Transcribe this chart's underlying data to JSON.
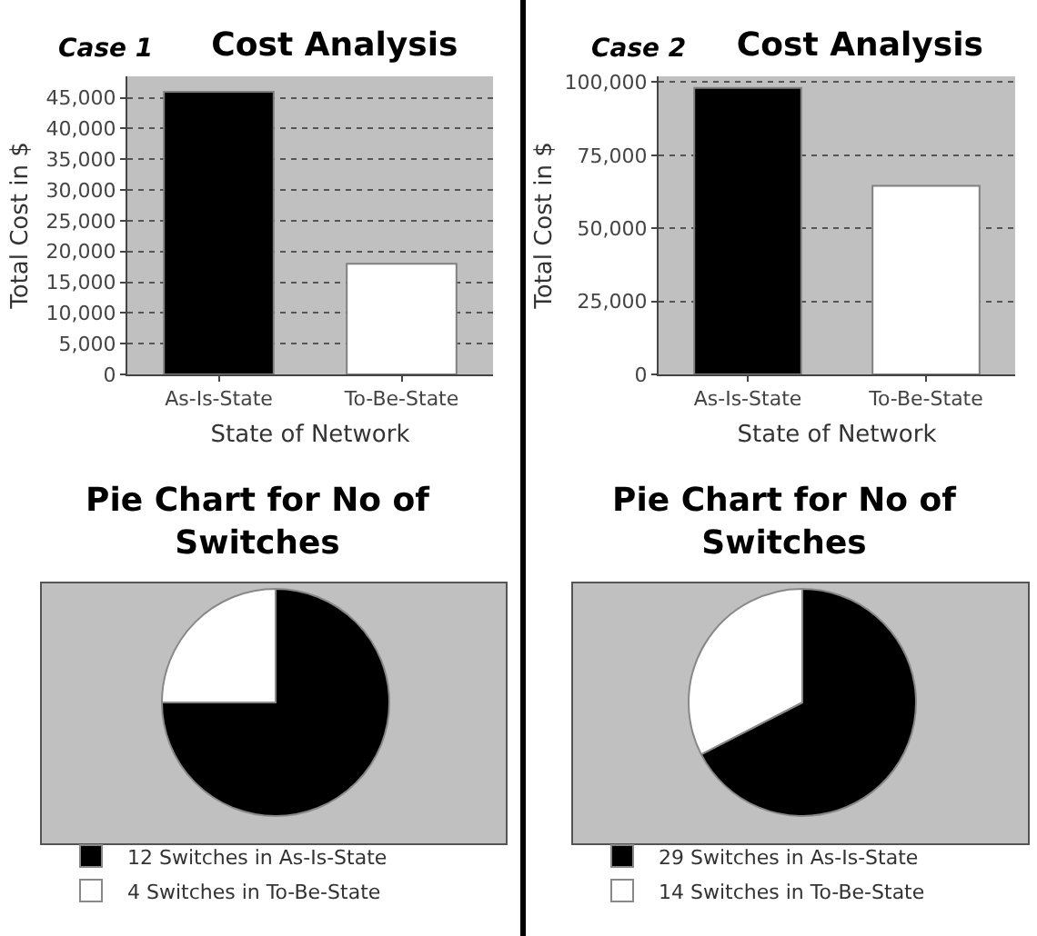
{
  "chart_data": [
    {
      "type": "bar",
      "title": "Cost Analysis",
      "annotations": [
        "Case 1"
      ],
      "xlabel": "State of Network",
      "ylabel": "Total Cost in $",
      "categories": [
        "As-Is-State",
        "To-Be-State"
      ],
      "values": [
        46000,
        18000
      ],
      "colors": [
        "#000000",
        "#ffffff"
      ],
      "ylim": [
        0,
        48500
      ],
      "yticks": [
        0,
        {
          "value": 5000,
          "label": "5,000"
        },
        {
          "value": 10000,
          "label": "10,000"
        },
        {
          "value": 15000,
          "label": "15,000"
        },
        {
          "value": 20000,
          "label": "20,000"
        },
        {
          "value": 25000,
          "label": "25,000"
        },
        {
          "value": 30000,
          "label": "30,000"
        },
        {
          "value": 35000,
          "label": "35,000"
        },
        {
          "value": 40000,
          "label": "40,000"
        },
        {
          "value": 45000,
          "label": "45,000"
        }
      ],
      "grid": "y"
    },
    {
      "type": "bar",
      "title": "Cost Analysis",
      "annotations": [
        "Case 2"
      ],
      "xlabel": "State of Network",
      "ylabel": "Total Cost in $",
      "categories": [
        "As-Is-State",
        "To-Be-State"
      ],
      "values": [
        98000,
        64500
      ],
      "colors": [
        "#000000",
        "#ffffff"
      ],
      "ylim": [
        0,
        102000
      ],
      "yticks": [
        0,
        {
          "value": 25000,
          "label": "25,000"
        },
        {
          "value": 50000,
          "label": "50,000"
        },
        {
          "value": 75000,
          "label": "75,000"
        },
        {
          "value": 100000,
          "label": "100,000"
        }
      ],
      "grid": "y"
    },
    {
      "type": "pie",
      "title": "Pie Chart for No of Switches",
      "categories": [
        "12 Switches in As-Is-State",
        "4 Switches in To-Be-State"
      ],
      "values": [
        12,
        4
      ],
      "colors": [
        "#000000",
        "#ffffff"
      ],
      "legend": "bottom"
    },
    {
      "type": "pie",
      "title": "Pie Chart for No of Switches",
      "categories": [
        "29 Switches in As-Is-State",
        "14 Switches in To-Be-State"
      ],
      "values": [
        29,
        14
      ],
      "colors": [
        "#000000",
        "#ffffff"
      ],
      "legend": "bottom"
    }
  ]
}
